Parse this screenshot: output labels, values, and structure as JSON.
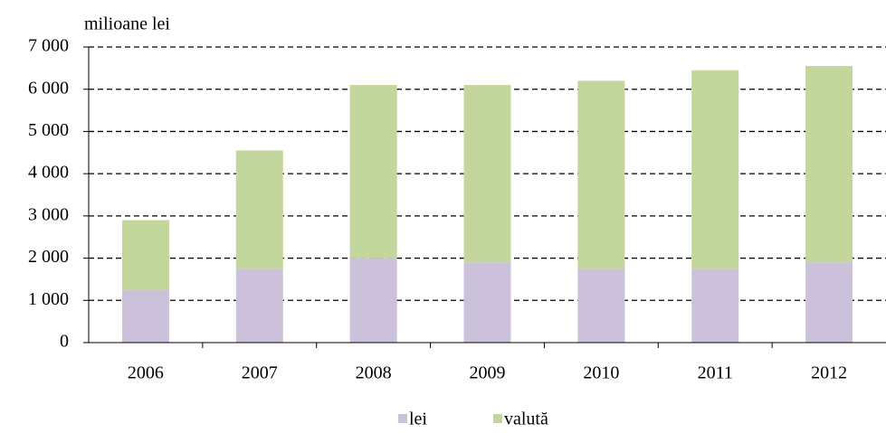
{
  "chart_data": {
    "type": "bar",
    "stacked": true,
    "y_label": "milioane lei",
    "categories": [
      "2006",
      "2007",
      "2008",
      "2009",
      "2010",
      "2011",
      "2012"
    ],
    "series": [
      {
        "name": "lei",
        "color": "#ccc1da",
        "values": [
          1250,
          1750,
          2000,
          1900,
          1750,
          1750,
          1900
        ]
      },
      {
        "name": "valută",
        "color": "#c3d69b",
        "values": [
          1650,
          2800,
          4100,
          4200,
          4450,
          4700,
          4650
        ]
      }
    ],
    "ylim": [
      0,
      7000
    ],
    "yticks": [
      0,
      {
        "value": 1000,
        "label": "1 000"
      },
      {
        "value": 2000,
        "label": "2 000"
      },
      {
        "value": 3000,
        "label": "3 000"
      },
      {
        "value": 4000,
        "label": "4 000"
      },
      {
        "value": 5000,
        "label": "5 000"
      },
      {
        "value": 6000,
        "label": "6 000"
      },
      {
        "value": 7000,
        "label": "7 000"
      }
    ],
    "grid": true,
    "legend": "bottom"
  }
}
